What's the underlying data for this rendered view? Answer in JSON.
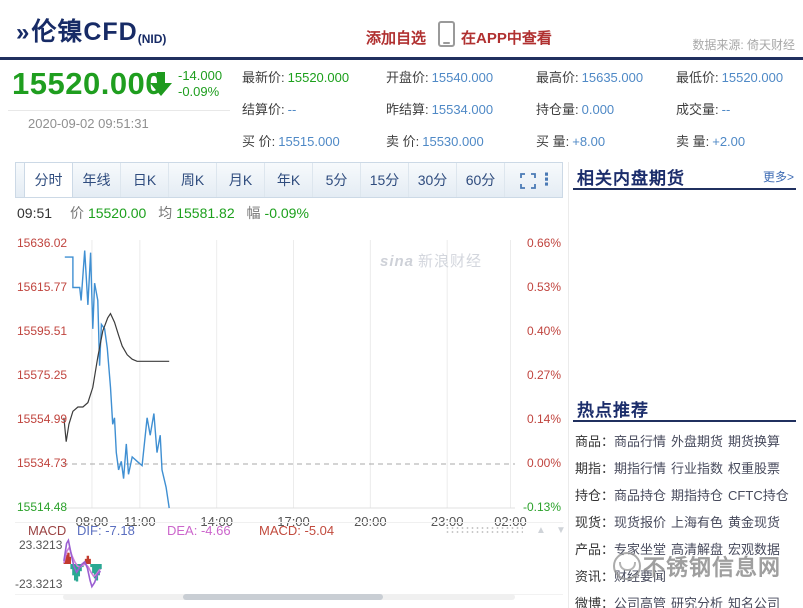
{
  "header": {
    "logo_mark": "»",
    "title": "伦镍CFD",
    "symbol": "(NID)",
    "add_watchlist": "添加自选",
    "view_in_app": "在APP中查看",
    "data_source": "数据来源: 倚天财经"
  },
  "quote": {
    "last_price": "15520.000",
    "change": "-14.000",
    "change_pct": "-0.09%",
    "timestamp": "2020-09-02 09:51:31",
    "fields": [
      {
        "label": "最新价:",
        "value": "15520.000",
        "color": "#1ca01c"
      },
      {
        "label": "开盘价:",
        "value": "15540.000",
        "color": "#4f89c6"
      },
      {
        "label": "最高价:",
        "value": "15635.000",
        "color": "#4f89c6"
      },
      {
        "label": "最低价:",
        "value": "15520.000",
        "color": "#4f89c6"
      },
      {
        "label": "结算价:",
        "value": "--",
        "color": "#4f89c6"
      },
      {
        "label": "昨结算:",
        "value": "15534.000",
        "color": "#4f89c6"
      },
      {
        "label": "持仓量:",
        "value": "0.000",
        "color": "#4f89c6"
      },
      {
        "label": "成交量:",
        "value": "--",
        "color": "#4f89c6"
      },
      {
        "label": "买 价:",
        "value": "15515.000",
        "color": "#4f89c6"
      },
      {
        "label": "卖 价:",
        "value": "15530.000",
        "color": "#4f89c6"
      },
      {
        "label": "买 量:",
        "value": "+8.00",
        "color": "#4f89c6"
      },
      {
        "label": "卖 量:",
        "value": "+2.00",
        "color": "#4f89c6"
      }
    ]
  },
  "tabs": {
    "items": [
      "分时",
      "年线",
      "日K",
      "周K",
      "月K",
      "年K",
      "5分",
      "15分",
      "30分",
      "60分"
    ],
    "active": "分时"
  },
  "minute_info": {
    "time": "09:51",
    "price_label": "价",
    "price": "15520.00",
    "avg_label": "均",
    "avg": "15581.82",
    "range_label": "幅",
    "range": "-0.09%"
  },
  "chart_data": {
    "type": "line",
    "title": "伦镍CFD 分时图",
    "watermark_logo": "sina",
    "watermark_text": "新浪财经",
    "y_range": [
      15514.48,
      15636.02
    ],
    "zero_line_price": 15534.73,
    "y_left_ticks": [
      {
        "text": "15636.02",
        "color": "#c0443e"
      },
      {
        "text": "15615.77",
        "color": "#c0443e"
      },
      {
        "text": "15595.51",
        "color": "#c0443e"
      },
      {
        "text": "15575.25",
        "color": "#c0443e"
      },
      {
        "text": "15554.99",
        "color": "#c0443e"
      },
      {
        "text": "15534.73",
        "color": "#c0443e"
      },
      {
        "text": "15514.48",
        "color": "#2ba12b"
      }
    ],
    "y_right_ticks": [
      {
        "text": "0.66%",
        "color": "#c0443e"
      },
      {
        "text": "0.53%",
        "color": "#c0443e"
      },
      {
        "text": "0.40%",
        "color": "#c0443e"
      },
      {
        "text": "0.27%",
        "color": "#c0443e"
      },
      {
        "text": "0.14%",
        "color": "#c0443e"
      },
      {
        "text": "0.00%",
        "color": "#c0443e"
      },
      {
        "text": "-0.13%",
        "color": "#2ba12b"
      }
    ],
    "x_ticks": [
      {
        "text": "08:00",
        "f": 0.064
      },
      {
        "text": "11:00",
        "f": 0.17
      },
      {
        "text": "14:00",
        "f": 0.34
      },
      {
        "text": "17:00",
        "f": 0.51
      },
      {
        "text": "20:00",
        "f": 0.68
      },
      {
        "text": "23:00",
        "f": 0.85
      },
      {
        "text": "02:00",
        "f": 0.99
      }
    ],
    "series": [
      {
        "name": "price",
        "color": "#3f8fd2",
        "width": 1.4,
        "points": [
          [
            0.004,
            15630
          ],
          [
            0.022,
            15630
          ],
          [
            0.022,
            15616
          ],
          [
            0.037,
            15616
          ],
          [
            0.04,
            15610
          ],
          [
            0.048,
            15633
          ],
          [
            0.055,
            15608
          ],
          [
            0.061,
            15632
          ],
          [
            0.066,
            15597
          ],
          [
            0.07,
            15618
          ],
          [
            0.077,
            15610
          ],
          [
            0.081,
            15580
          ],
          [
            0.085,
            15599
          ],
          [
            0.092,
            15597
          ],
          [
            0.098,
            15588
          ],
          [
            0.105,
            15570
          ],
          [
            0.11,
            15553
          ],
          [
            0.114,
            15556
          ],
          [
            0.118,
            15540
          ],
          [
            0.123,
            15532
          ],
          [
            0.129,
            15536
          ],
          [
            0.134,
            15528
          ],
          [
            0.14,
            15544
          ],
          [
            0.145,
            15530
          ],
          [
            0.153,
            15538
          ],
          [
            0.164,
            15536
          ],
          [
            0.175,
            15534
          ],
          [
            0.186,
            15556
          ],
          [
            0.193,
            15548
          ],
          [
            0.201,
            15558
          ],
          [
            0.208,
            15540
          ],
          [
            0.215,
            15548
          ],
          [
            0.219,
            15532
          ],
          [
            0.228,
            15524
          ],
          [
            0.235,
            15514.5
          ]
        ]
      },
      {
        "name": "average",
        "color": "#3c3c3c",
        "width": 1.2,
        "points": [
          [
            0.002,
            15556
          ],
          [
            0.007,
            15545
          ],
          [
            0.013,
            15553
          ],
          [
            0.022,
            15559
          ],
          [
            0.033,
            15561
          ],
          [
            0.044,
            15561
          ],
          [
            0.055,
            15563
          ],
          [
            0.066,
            15570
          ],
          [
            0.077,
            15584
          ],
          [
            0.088,
            15596
          ],
          [
            0.099,
            15602
          ],
          [
            0.105,
            15604
          ],
          [
            0.114,
            15600
          ],
          [
            0.123,
            15594
          ],
          [
            0.131,
            15589
          ],
          [
            0.142,
            15585
          ],
          [
            0.153,
            15583
          ],
          [
            0.164,
            15582
          ],
          [
            0.186,
            15582
          ],
          [
            0.235,
            15582
          ]
        ]
      }
    ],
    "macd": {
      "y_range": [
        -23.3213,
        23.3213
      ],
      "bar_up_color": "#c23b2e",
      "bar_down_color": "#2aa893",
      "dif_color": "#9a5fd2",
      "dea_color": "#cf7fd8",
      "bars": [
        [
          0.004,
          5
        ],
        [
          0.008,
          9
        ],
        [
          0.012,
          11
        ],
        [
          0.015,
          7
        ],
        [
          0.019,
          -5
        ],
        [
          0.023,
          -11
        ],
        [
          0.027,
          -16
        ],
        [
          0.031,
          -17
        ],
        [
          0.035,
          -12
        ],
        [
          0.039,
          -7
        ],
        [
          0.043,
          -3
        ],
        [
          0.047,
          2
        ],
        [
          0.051,
          5
        ],
        [
          0.055,
          8
        ],
        [
          0.059,
          5
        ],
        [
          0.063,
          -3
        ],
        [
          0.067,
          -9
        ],
        [
          0.071,
          -14
        ],
        [
          0.075,
          -16
        ],
        [
          0.079,
          -11
        ],
        [
          0.083,
          -5
        ]
      ],
      "dif_points": [
        [
          0.002,
          3
        ],
        [
          0.008,
          20
        ],
        [
          0.012,
          23
        ],
        [
          0.018,
          10
        ],
        [
          0.024,
          -2
        ],
        [
          0.03,
          -8
        ],
        [
          0.036,
          -4
        ],
        [
          0.042,
          0
        ],
        [
          0.048,
          2
        ],
        [
          0.054,
          -4
        ],
        [
          0.06,
          -16
        ],
        [
          0.064,
          -22
        ],
        [
          0.07,
          -18
        ],
        [
          0.076,
          -10
        ],
        [
          0.083,
          -7
        ]
      ],
      "dea_points": [
        [
          0.002,
          1
        ],
        [
          0.008,
          12
        ],
        [
          0.014,
          16
        ],
        [
          0.02,
          8
        ],
        [
          0.026,
          2
        ],
        [
          0.032,
          -2
        ],
        [
          0.038,
          -3
        ],
        [
          0.044,
          -1
        ],
        [
          0.05,
          0
        ],
        [
          0.056,
          -3
        ],
        [
          0.062,
          -8
        ],
        [
          0.068,
          -12
        ],
        [
          0.074,
          -10
        ],
        [
          0.08,
          -6
        ],
        [
          0.083,
          -5
        ]
      ]
    }
  },
  "macd_info": {
    "title": "MACD",
    "dif_label": "DIF:",
    "dif": "-7.18",
    "dea_label": "DEA:",
    "dea": "-4.66",
    "macd_label": "MACD:",
    "macd": "-5.04",
    "y_max": "23.3213",
    "y_min": "-23.3213"
  },
  "sidebar": {
    "related_title": "相关内盘期货",
    "more_link": "更多>",
    "hot_title": "热点推荐",
    "rows": [
      {
        "label": "商品",
        "links": [
          "商品行情",
          "外盘期货",
          "期货换算"
        ]
      },
      {
        "label": "期指",
        "links": [
          "期指行情",
          "行业指数",
          "权重股票"
        ]
      },
      {
        "label": "持仓",
        "links": [
          "商品持仓",
          "期指持仓",
          "CFTC持仓"
        ]
      },
      {
        "label": "现货",
        "links": [
          "现货报价",
          "上海有色",
          "黄金现货"
        ]
      },
      {
        "label": "产品",
        "links": [
          "专家坐堂",
          "高清解盘",
          "宏观数据"
        ]
      },
      {
        "label": "资讯",
        "links": [
          "财经要闻"
        ]
      },
      {
        "label": "微博",
        "links": [
          "公司高管",
          "研究分析",
          "知名公司"
        ]
      }
    ],
    "watermark": "不锈钢信息网"
  }
}
